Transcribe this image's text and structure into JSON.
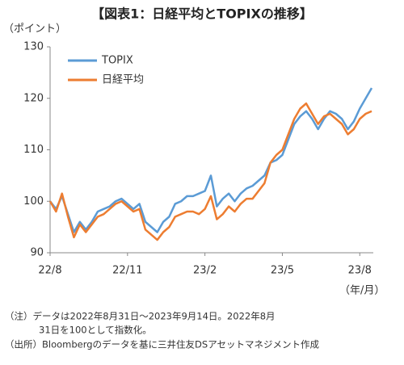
{
  "chart_data": {
    "type": "line",
    "title": "【図表1：日経平均とTOPIXの推移】",
    "y_label": "（ポイント）",
    "x_label": "（年/月）",
    "notes": [
      "（注）データは2022年8月31日～2023年9月14日。2022年8月",
      "31日を100として指数化。",
      "（出所）Bloombergのデータを基に三井住友DSアセットマネジメント作成"
    ],
    "categories": [
      "22/8",
      null,
      null,
      null,
      null,
      null,
      null,
      null,
      null,
      null,
      null,
      null,
      null,
      "22/11",
      null,
      null,
      null,
      null,
      null,
      null,
      null,
      null,
      null,
      null,
      null,
      null,
      "23/2",
      null,
      null,
      null,
      null,
      null,
      null,
      null,
      null,
      null,
      null,
      null,
      null,
      "23/5",
      null,
      null,
      null,
      null,
      null,
      null,
      null,
      null,
      null,
      null,
      null,
      null,
      "23/8",
      null,
      null
    ],
    "series": [
      {
        "name": "TOPIX",
        "color": "#5b9bd5",
        "values": [
          100,
          98.5,
          101,
          97.5,
          94,
          96,
          94.5,
          96,
          98,
          98.5,
          99,
          100,
          100.5,
          99.5,
          98.5,
          99.5,
          96,
          95,
          94,
          96,
          97,
          99.5,
          100,
          101,
          101,
          101.5,
          102,
          105,
          99,
          100.5,
          101.5,
          100,
          101.5,
          102.5,
          103,
          104,
          105,
          107.5,
          108,
          109,
          112,
          115,
          116.5,
          117.5,
          116,
          114,
          116,
          117.5,
          117,
          116,
          114,
          115.5,
          118,
          120,
          122
        ]
      },
      {
        "name": "日経平均",
        "color": "#ed7d31",
        "values": [
          100,
          98,
          101.5,
          97,
          93,
          95.5,
          94,
          95.5,
          97,
          97.5,
          98.5,
          99.5,
          100,
          99,
          98,
          98.5,
          94.5,
          93.5,
          92.5,
          94,
          95,
          97,
          97.5,
          98,
          98,
          97.5,
          98.5,
          101,
          96.5,
          97.5,
          99,
          98,
          99.5,
          100.5,
          100.5,
          102,
          103.5,
          107.5,
          109,
          110,
          113,
          116,
          118,
          119,
          117,
          115,
          116.5,
          117,
          116,
          115,
          113,
          114,
          116,
          117,
          117.5
        ]
      }
    ],
    "ylim": [
      90,
      130
    ],
    "yticks": [
      90,
      100,
      110,
      120,
      130
    ],
    "grid": false,
    "legend": "upper left"
  }
}
